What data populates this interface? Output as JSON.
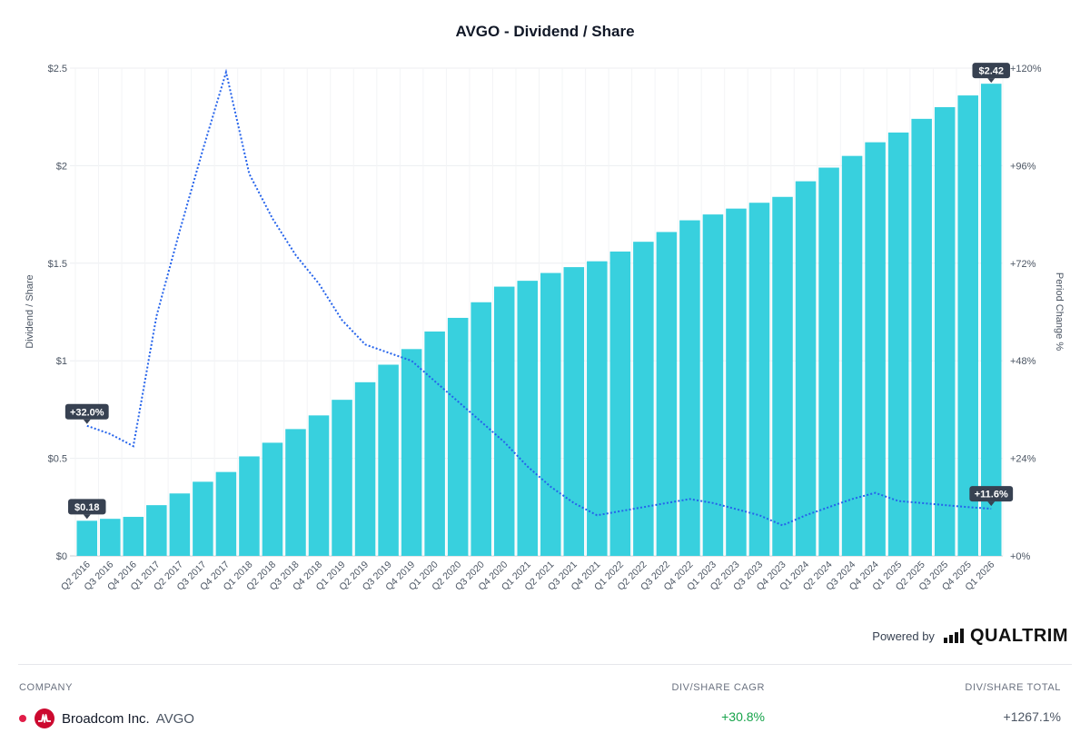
{
  "chart_data": {
    "type": "bar",
    "title": "AVGO - Dividend / Share",
    "ylabel": "Dividend / Share",
    "y2label": "Period Change %",
    "ylim": [
      0,
      2.5
    ],
    "y2lim": [
      0,
      120
    ],
    "y_ticks": [
      "$0",
      "$0.5",
      "$1",
      "$1.5",
      "$2",
      "$2.5"
    ],
    "y_tick_values": [
      0,
      0.5,
      1,
      1.5,
      2,
      2.5
    ],
    "y2_ticks": [
      "+0%",
      "+24%",
      "+48%",
      "+72%",
      "+96%",
      "+120%"
    ],
    "y2_tick_values": [
      0,
      24,
      48,
      72,
      96,
      120
    ],
    "categories": [
      "Q2 2016",
      "Q3 2016",
      "Q4 2016",
      "Q1 2017",
      "Q2 2017",
      "Q3 2017",
      "Q4 2017",
      "Q1 2018",
      "Q2 2018",
      "Q3 2018",
      "Q4 2018",
      "Q1 2019",
      "Q2 2019",
      "Q3 2019",
      "Q4 2019",
      "Q1 2020",
      "Q2 2020",
      "Q3 2020",
      "Q4 2020",
      "Q1 2021",
      "Q2 2021",
      "Q3 2021",
      "Q4 2021",
      "Q1 2022",
      "Q2 2022",
      "Q3 2022",
      "Q4 2022",
      "Q1 2023",
      "Q2 2023",
      "Q3 2023",
      "Q4 2023",
      "Q1 2024",
      "Q2 2024",
      "Q3 2024",
      "Q4 2024",
      "Q1 2025",
      "Q2 2025",
      "Q3 2025",
      "Q4 2025",
      "Q1 2026"
    ],
    "series": [
      {
        "name": "Dividend / Share",
        "type": "bar",
        "color": "#38d0de",
        "values": [
          0.18,
          0.19,
          0.2,
          0.26,
          0.32,
          0.38,
          0.43,
          0.51,
          0.58,
          0.65,
          0.72,
          0.8,
          0.89,
          0.98,
          1.06,
          1.15,
          1.22,
          1.3,
          1.38,
          1.41,
          1.45,
          1.48,
          1.51,
          1.56,
          1.61,
          1.66,
          1.72,
          1.75,
          1.78,
          1.81,
          1.84,
          1.92,
          1.99,
          2.05,
          2.12,
          2.17,
          2.24,
          2.3,
          2.36,
          2.42
        ]
      },
      {
        "name": "Period Change %",
        "type": "line",
        "axis": "right",
        "color": "#2563eb",
        "start_index": 0,
        "values": [
          32.0,
          30.0,
          27.0,
          59.0,
          80.0,
          100.0,
          119.0,
          94.0,
          83.0,
          74.0,
          67.0,
          58.0,
          52.0,
          50.0,
          48.0,
          43.0,
          38.0,
          33.0,
          28.0,
          22.0,
          17.0,
          13.0,
          10.0,
          11.0,
          12.0,
          13.0,
          14.0,
          13.0,
          11.5,
          10.0,
          7.5,
          10.0,
          12.0,
          14.0,
          15.5,
          13.5,
          13.0,
          12.5,
          12.0,
          11.6
        ]
      }
    ],
    "labels": {
      "first_bar": "$0.18",
      "last_bar": "$2.42",
      "first_change": "+32.0%",
      "last_change": "+11.6%"
    }
  },
  "footer": {
    "powered_by": "Powered by",
    "brand": "QUALTRIM"
  },
  "table": {
    "headers": {
      "company": "COMPANY",
      "cagr": "DIV/SHARE CAGR",
      "total": "DIV/SHARE TOTAL"
    },
    "rows": [
      {
        "company": "Broadcom Inc.",
        "ticker": "AVGO",
        "cagr": "+30.8%",
        "total": "+1267.1%",
        "dot_color": "#e11d48",
        "logo_color": "#cc092f",
        "logo_icon": "broadcom-logo-icon"
      }
    ]
  }
}
